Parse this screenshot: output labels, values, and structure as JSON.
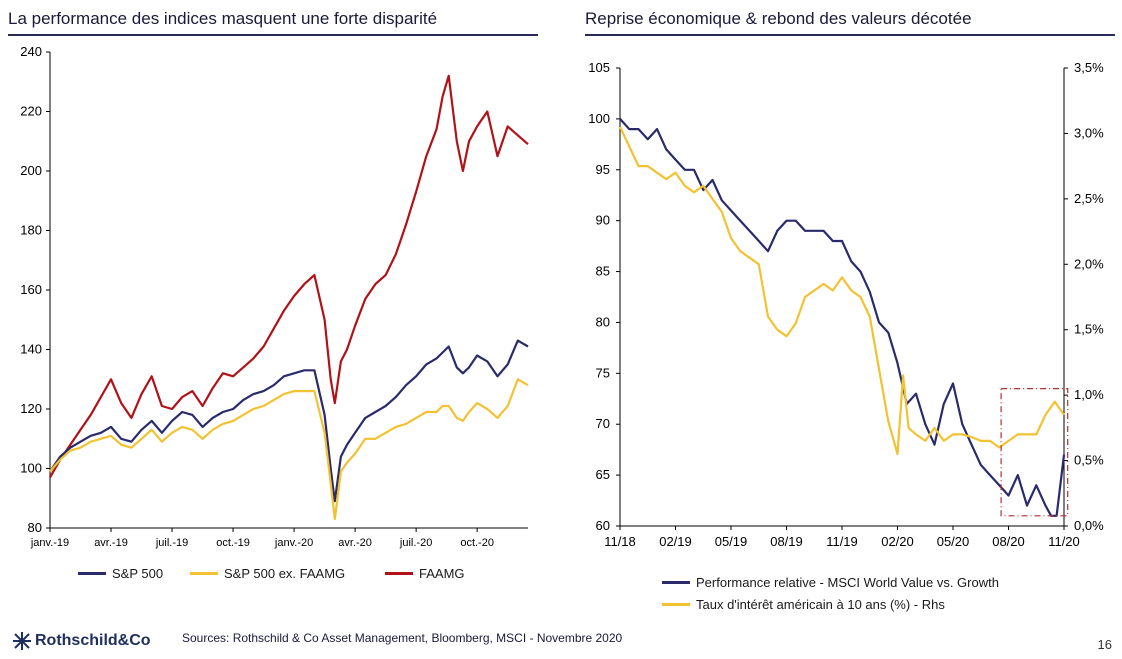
{
  "page": {
    "source_note": "Sources: Rothschild & Co  Asset Management,  Bloomberg, MSCI  - Novembre 2020",
    "page_number": "16",
    "logo_text": "Rothschild&Co"
  },
  "colors": {
    "navy": "#2b2a6b",
    "gold": "#f2c232",
    "red": "#b01218",
    "frame": "#b03030"
  },
  "left_title": "La performance des indices masquent une forte disparité",
  "right_title": "Reprise économique & rebond des valeurs décotée",
  "left_legend": [
    "S&P 500",
    "S&P 500 ex. FAAMG",
    "FAAMG"
  ],
  "right_legend": [
    "Performance relative - MSCI World Value vs. Growth",
    "Taux d'intérêt américain à 10 ans (%) - Rhs"
  ],
  "chart_data": [
    {
      "type": "line",
      "title": "La performance des indices masquent une forte disparité",
      "xlabel": "",
      "ylabel": "",
      "ylim": [
        80,
        240
      ],
      "yticks": [
        80,
        100,
        120,
        140,
        160,
        180,
        200,
        220,
        240
      ],
      "xlim": [
        0,
        23.5
      ],
      "xticks": [
        {
          "x": 0,
          "label": "janv.-19"
        },
        {
          "x": 3,
          "label": "avr.-19"
        },
        {
          "x": 6,
          "label": "juil.-19"
        },
        {
          "x": 9,
          "label": "oct.-19"
        },
        {
          "x": 12,
          "label": "janv.-20"
        },
        {
          "x": 15,
          "label": "avr.-20"
        },
        {
          "x": 18,
          "label": "juil.-20"
        },
        {
          "x": 21,
          "label": "oct.-20"
        }
      ],
      "grid": false,
      "legend_position": "bottom",
      "series": [
        {
          "name": "FAAMG",
          "color": "#b01218",
          "x": [
            0,
            0.5,
            1,
            1.5,
            2,
            2.5,
            3,
            3.5,
            4,
            4.5,
            5,
            5.5,
            6,
            6.5,
            7,
            7.5,
            8,
            8.5,
            9,
            9.5,
            10,
            10.5,
            11,
            11.5,
            12,
            12.5,
            13,
            13.5,
            13.8,
            14,
            14.3,
            14.6,
            15,
            15.5,
            16,
            16.5,
            17,
            17.5,
            18,
            18.5,
            19,
            19.3,
            19.6,
            20,
            20.3,
            20.6,
            21,
            21.5,
            22,
            22.5,
            23,
            23.5
          ],
          "y": [
            97,
            103,
            108,
            113,
            118,
            124,
            130,
            122,
            117,
            125,
            131,
            121,
            120,
            124,
            126,
            121,
            127,
            132,
            131,
            134,
            137,
            141,
            147,
            153,
            158,
            162,
            165,
            150,
            130,
            122,
            136,
            140,
            148,
            157,
            162,
            165,
            172,
            182,
            193,
            205,
            214,
            225,
            232,
            210,
            200,
            210,
            215,
            220,
            205,
            215,
            212,
            209
          ]
        },
        {
          "name": "S&P 500",
          "color": "#2b2a6b",
          "x": [
            0,
            0.5,
            1,
            1.5,
            2,
            2.5,
            3,
            3.5,
            4,
            4.5,
            5,
            5.5,
            6,
            6.5,
            7,
            7.5,
            8,
            8.5,
            9,
            9.5,
            10,
            10.5,
            11,
            11.5,
            12,
            12.5,
            13,
            13.5,
            13.8,
            14,
            14.3,
            14.6,
            15,
            15.5,
            16,
            16.5,
            17,
            17.5,
            18,
            18.5,
            19,
            19.3,
            19.6,
            20,
            20.3,
            20.6,
            21,
            21.5,
            22,
            22.5,
            23,
            23.5
          ],
          "y": [
            99,
            104,
            107,
            109,
            111,
            112,
            114,
            110,
            109,
            113,
            116,
            112,
            116,
            119,
            118,
            114,
            117,
            119,
            120,
            123,
            125,
            126,
            128,
            131,
            132,
            133,
            133,
            118,
            100,
            89,
            104,
            108,
            112,
            117,
            119,
            121,
            124,
            128,
            131,
            135,
            137,
            139,
            141,
            134,
            132,
            134,
            138,
            136,
            131,
            135,
            143,
            141
          ]
        },
        {
          "name": "S&P 500 ex. FAAMG",
          "color": "#f2c232",
          "x": [
            0,
            0.5,
            1,
            1.5,
            2,
            2.5,
            3,
            3.5,
            4,
            4.5,
            5,
            5.5,
            6,
            6.5,
            7,
            7.5,
            8,
            8.5,
            9,
            9.5,
            10,
            10.5,
            11,
            11.5,
            12,
            12.5,
            13,
            13.5,
            13.8,
            14,
            14.3,
            14.6,
            15,
            15.5,
            16,
            16.5,
            17,
            17.5,
            18,
            18.5,
            19,
            19.3,
            19.6,
            20,
            20.3,
            20.6,
            21,
            21.5,
            22,
            22.5,
            23,
            23.5
          ],
          "y": [
            99,
            103,
            106,
            107,
            109,
            110,
            111,
            108,
            107,
            110,
            113,
            109,
            112,
            114,
            113,
            110,
            113,
            115,
            116,
            118,
            120,
            121,
            123,
            125,
            126,
            126,
            126,
            112,
            95,
            83,
            99,
            102,
            105,
            110,
            110,
            112,
            114,
            115,
            117,
            119,
            119,
            121,
            121,
            117,
            116,
            119,
            122,
            120,
            117,
            121,
            130,
            128
          ]
        }
      ]
    },
    {
      "type": "line",
      "title": "Reprise économique & rebond des valeurs décotée",
      "xlabel": "",
      "ylabel": "",
      "ylim": [
        60,
        105
      ],
      "yticks": [
        60,
        65,
        70,
        75,
        80,
        85,
        90,
        95,
        100,
        105
      ],
      "y2lim": [
        0.0,
        3.5
      ],
      "y2ticks": [
        "0,0%",
        "0,5%",
        "1,0%",
        "1,5%",
        "2,0%",
        "2,5%",
        "3,0%",
        "3,5%"
      ],
      "xlim": [
        0,
        24
      ],
      "xticks": [
        {
          "x": 0,
          "label": "11/18"
        },
        {
          "x": 3,
          "label": "02/19"
        },
        {
          "x": 6,
          "label": "05/19"
        },
        {
          "x": 9,
          "label": "08/19"
        },
        {
          "x": 12,
          "label": "11/19"
        },
        {
          "x": 15,
          "label": "02/20"
        },
        {
          "x": 18,
          "label": "05/20"
        },
        {
          "x": 21,
          "label": "08/20"
        },
        {
          "x": 24,
          "label": "11/20"
        }
      ],
      "grid": false,
      "legend_position": "bottom",
      "highlight_box": {
        "x": [
          20.6,
          24.2
        ],
        "y": [
          61,
          73.5
        ]
      },
      "series": [
        {
          "name": "Performance relative - MSCI World Value vs. Growth",
          "axis": "left",
          "color": "#2b2a6b",
          "x": [
            0,
            0.5,
            1,
            1.5,
            2,
            2.5,
            3,
            3.5,
            4,
            4.5,
            5,
            5.5,
            6,
            6.5,
            7,
            7.5,
            8,
            8.5,
            9,
            9.5,
            10,
            10.5,
            11,
            11.5,
            12,
            12.5,
            13,
            13.5,
            14,
            14.5,
            15,
            15.5,
            16,
            16.5,
            17,
            17.5,
            18,
            18.5,
            19,
            19.5,
            20,
            20.5,
            21,
            21.5,
            22,
            22.5,
            23,
            23.3,
            23.6,
            24
          ],
          "y": [
            100,
            99,
            99,
            98,
            99,
            97,
            96,
            95,
            95,
            93,
            94,
            92,
            91,
            90,
            89,
            88,
            87,
            89,
            90,
            90,
            89,
            89,
            89,
            88,
            88,
            86,
            85,
            83,
            80,
            79,
            76,
            72,
            73,
            70,
            68,
            72,
            74,
            70,
            68,
            66,
            65,
            64,
            63,
            65,
            62,
            64,
            62,
            61,
            61,
            67
          ]
        },
        {
          "name": "Taux d'intérêt américain à 10 ans (%) - Rhs",
          "axis": "right",
          "color": "#f2c232",
          "x": [
            0,
            0.5,
            1,
            1.5,
            2,
            2.5,
            3,
            3.5,
            4,
            4.5,
            5,
            5.5,
            6,
            6.5,
            7,
            7.5,
            8,
            8.5,
            9,
            9.5,
            10,
            10.5,
            11,
            11.5,
            12,
            12.5,
            13,
            13.5,
            14,
            14.5,
            15,
            15.3,
            15.6,
            16,
            16.5,
            17,
            17.5,
            18,
            18.5,
            19,
            19.5,
            20,
            20.5,
            21,
            21.5,
            22,
            22.5,
            23,
            23.5,
            24
          ],
          "y": [
            3.05,
            2.9,
            2.75,
            2.75,
            2.7,
            2.65,
            2.7,
            2.6,
            2.55,
            2.6,
            2.5,
            2.4,
            2.2,
            2.1,
            2.05,
            2.0,
            1.6,
            1.5,
            1.45,
            1.55,
            1.75,
            1.8,
            1.85,
            1.8,
            1.9,
            1.8,
            1.75,
            1.6,
            1.2,
            0.8,
            0.55,
            1.15,
            0.75,
            0.7,
            0.65,
            0.75,
            0.65,
            0.7,
            0.7,
            0.68,
            0.65,
            0.65,
            0.6,
            0.65,
            0.7,
            0.7,
            0.7,
            0.85,
            0.95,
            0.85
          ]
        }
      ]
    }
  ]
}
